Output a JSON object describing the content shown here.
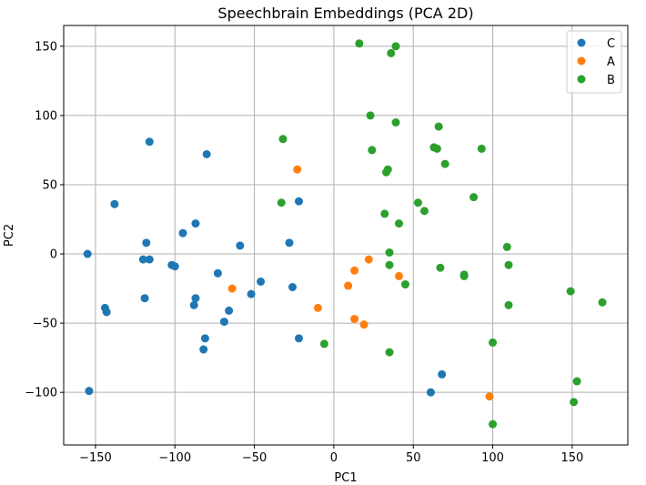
{
  "chart_data": {
    "type": "scatter",
    "title": "Speechbrain Embeddings (PCA 2D)",
    "xlabel": "PC1",
    "ylabel": "PC2",
    "xlim": [
      -170,
      185
    ],
    "ylim": [
      -138,
      165
    ],
    "xticks": [
      -150,
      -100,
      -50,
      0,
      50,
      100,
      150
    ],
    "yticks": [
      -100,
      -50,
      0,
      50,
      100,
      150
    ],
    "grid": true,
    "legend_position": "top-right",
    "series": [
      {
        "name": "C",
        "color": "#1f77b4",
        "points": [
          [
            -116,
            81
          ],
          [
            -80,
            72
          ],
          [
            -138,
            36
          ],
          [
            -87,
            22
          ],
          [
            -95,
            15
          ],
          [
            -118,
            8
          ],
          [
            -59,
            6
          ],
          [
            -28,
            8
          ],
          [
            -22,
            38
          ],
          [
            -155,
            0
          ],
          [
            -120,
            -4
          ],
          [
            -116,
            -4
          ],
          [
            -102,
            -8
          ],
          [
            -100,
            -9
          ],
          [
            -73,
            -14
          ],
          [
            -46,
            -20
          ],
          [
            -26,
            -24
          ],
          [
            -52,
            -29
          ],
          [
            -119,
            -32
          ],
          [
            -87,
            -32
          ],
          [
            -144,
            -39
          ],
          [
            -143,
            -42
          ],
          [
            -88,
            -37
          ],
          [
            -66,
            -41
          ],
          [
            -69,
            -49
          ],
          [
            -81,
            -61
          ],
          [
            -22,
            -61
          ],
          [
            -82,
            -69
          ],
          [
            -154,
            -99
          ],
          [
            68,
            -87
          ],
          [
            61,
            -100
          ]
        ]
      },
      {
        "name": "A",
        "color": "#ff7f0e",
        "points": [
          [
            -23,
            61
          ],
          [
            -64,
            -25
          ],
          [
            22,
            -4
          ],
          [
            13,
            -12
          ],
          [
            41,
            -16
          ],
          [
            9,
            -23
          ],
          [
            -10,
            -39
          ],
          [
            13,
            -47
          ],
          [
            19,
            -51
          ],
          [
            98,
            -103
          ]
        ]
      },
      {
        "name": "B",
        "color": "#2ca02c",
        "points": [
          [
            16,
            152
          ],
          [
            39,
            150
          ],
          [
            36,
            145
          ],
          [
            23,
            100
          ],
          [
            39,
            95
          ],
          [
            66,
            92
          ],
          [
            -32,
            83
          ],
          [
            24,
            75
          ],
          [
            63,
            77
          ],
          [
            65,
            76
          ],
          [
            93,
            76
          ],
          [
            70,
            65
          ],
          [
            34,
            61
          ],
          [
            33,
            59
          ],
          [
            88,
            41
          ],
          [
            -33,
            37
          ],
          [
            53,
            37
          ],
          [
            57,
            31
          ],
          [
            32,
            29
          ],
          [
            41,
            22
          ],
          [
            109,
            5
          ],
          [
            35,
            1
          ],
          [
            110,
            -8
          ],
          [
            35,
            -8
          ],
          [
            67,
            -10
          ],
          [
            82,
            -15
          ],
          [
            82,
            -16
          ],
          [
            45,
            -22
          ],
          [
            149,
            -27
          ],
          [
            169,
            -35
          ],
          [
            110,
            -37
          ],
          [
            -6,
            -65
          ],
          [
            100,
            -64
          ],
          [
            35,
            -71
          ],
          [
            153,
            -92
          ],
          [
            151,
            -107
          ],
          [
            100,
            -123
          ]
        ]
      }
    ]
  }
}
